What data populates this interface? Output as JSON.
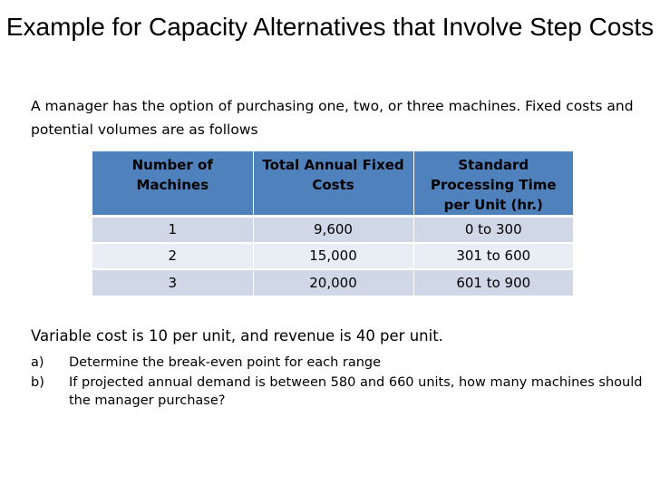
{
  "title": "Example for Capacity Alternatives that Involve Step Costs",
  "intro": "A manager has the option of purchasing one, two, or three machines. Fixed costs and potential volumes are as follows",
  "table": {
    "headers": [
      "Number of Machines",
      "Total Annual Fixed Costs",
      "Standard Processing Time per Unit (hr.)"
    ],
    "rows": [
      [
        "1",
        "9,600",
        "0 to 300"
      ],
      [
        "2",
        "15,000",
        "301 to 600"
      ],
      [
        "3",
        "20,000",
        "601 to 900"
      ]
    ]
  },
  "variable_cost_text": "Variable cost is 10 per unit, and revenue is 40 per unit.",
  "questions": [
    {
      "marker": "a)",
      "text": "Determine the break-even point for each range"
    },
    {
      "marker": "b)",
      "text": "If projected annual demand is between 580 and 660 units, how many machines should the manager purchase?"
    }
  ],
  "colors": {
    "header_bg": "#4f81bd",
    "row_odd": "#d0d8e8",
    "row_even": "#e9edf4"
  }
}
